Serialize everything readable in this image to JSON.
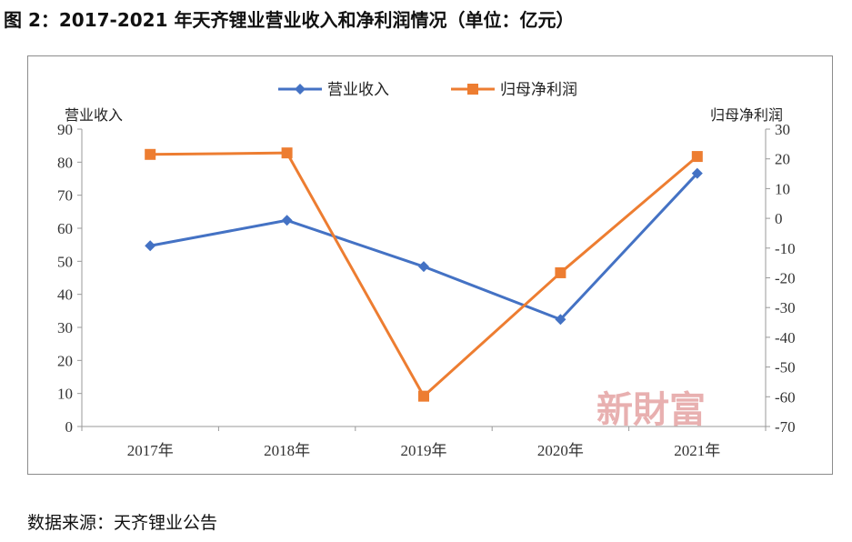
{
  "title": "图 2：2017-2021 年天齐锂业营业收入和净利润情况（单位：亿元）",
  "source": "数据来源：天齐锂业公告",
  "watermark": "新財富",
  "colors": {
    "revenue": "#4472C4",
    "profit": "#ED7D31",
    "axis": "#999999"
  },
  "chart_data": {
    "type": "line",
    "categories": [
      "2017年",
      "2018年",
      "2019年",
      "2020年",
      "2021年"
    ],
    "series": [
      {
        "name": "营业收入",
        "axis": "left",
        "marker": "diamond",
        "values": [
          54.7,
          62.4,
          48.4,
          32.4,
          76.6
        ]
      },
      {
        "name": "归母净利润",
        "axis": "right",
        "marker": "square",
        "values": [
          21.5,
          22.0,
          -59.8,
          -18.3,
          20.8
        ]
      }
    ],
    "left_axis": {
      "label": "营业收入",
      "min": 0,
      "max": 90,
      "step": 10
    },
    "right_axis": {
      "label": "归母净利润",
      "min": -70,
      "max": 30,
      "step": 10
    },
    "legend_position": "top-center",
    "grid": false
  }
}
